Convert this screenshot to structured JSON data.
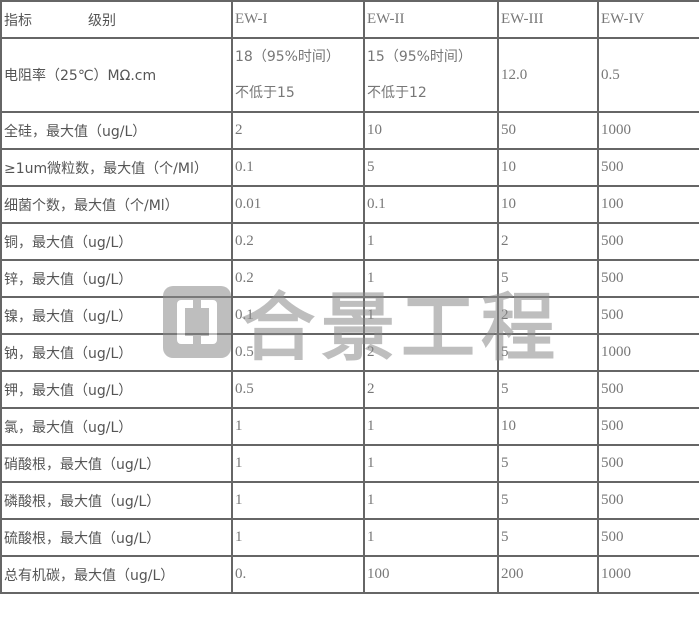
{
  "header": {
    "indicator": "指标",
    "grade": "级别",
    "cols": [
      "EW-I",
      "EW-II",
      "EW-III",
      "EW-IV"
    ]
  },
  "rows": [
    {
      "label": "电阻率（25℃）MΩ.cm",
      "values": [
        [
          "18（95%时间）",
          "不低于15"
        ],
        [
          "15（95%时间）",
          "不低于12"
        ],
        [
          "12.0"
        ],
        [
          "0.5"
        ]
      ]
    },
    {
      "label": "全硅，最大值（ug/L）",
      "values": [
        [
          "2"
        ],
        [
          "10"
        ],
        [
          "50"
        ],
        [
          "1000"
        ]
      ]
    },
    {
      "label": "≥1um微粒数，最大值（个/Ml）",
      "values": [
        [
          "0.1"
        ],
        [
          "5"
        ],
        [
          "10"
        ],
        [
          "500"
        ]
      ]
    },
    {
      "label": "细菌个数，最大值（个/Ml）",
      "values": [
        [
          "0.01"
        ],
        [
          "0.1"
        ],
        [
          "10"
        ],
        [
          "100"
        ]
      ]
    },
    {
      "label": "铜，最大值（ug/L）",
      "values": [
        [
          "0.2"
        ],
        [
          "1"
        ],
        [
          "2"
        ],
        [
          "500"
        ]
      ]
    },
    {
      "label": "锌，最大值（ug/L）",
      "values": [
        [
          "0.2"
        ],
        [
          "1"
        ],
        [
          "5"
        ],
        [
          "500"
        ]
      ]
    },
    {
      "label": "镍，最大值（ug/L）",
      "values": [
        [
          "0.1"
        ],
        [
          "1"
        ],
        [
          "2"
        ],
        [
          "500"
        ]
      ]
    },
    {
      "label": "钠，最大值（ug/L）",
      "values": [
        [
          "0.5"
        ],
        [
          "2"
        ],
        [
          "5"
        ],
        [
          "1000"
        ]
      ]
    },
    {
      "label": "钾，最大值（ug/L）",
      "values": [
        [
          "0.5"
        ],
        [
          "2"
        ],
        [
          "5"
        ],
        [
          "500"
        ]
      ]
    },
    {
      "label": "氯，最大值（ug/L）",
      "values": [
        [
          "1"
        ],
        [
          "1"
        ],
        [
          "10"
        ],
        [
          "500"
        ]
      ]
    },
    {
      "label": "硝酸根，最大值（ug/L）",
      "values": [
        [
          "1"
        ],
        [
          "1"
        ],
        [
          "5"
        ],
        [
          "500"
        ]
      ]
    },
    {
      "label": "磷酸根，最大值（ug/L）",
      "values": [
        [
          "1"
        ],
        [
          "1"
        ],
        [
          "5"
        ],
        [
          "500"
        ]
      ]
    },
    {
      "label": "硫酸根，最大值（ug/L）",
      "values": [
        [
          "1"
        ],
        [
          "1"
        ],
        [
          "5"
        ],
        [
          "500"
        ]
      ]
    },
    {
      "label": "总有机碳，最大值（ug/L）",
      "values": [
        [
          "0."
        ],
        [
          "100"
        ],
        [
          "200"
        ],
        [
          "1000"
        ]
      ]
    }
  ],
  "watermark": "合景工程"
}
